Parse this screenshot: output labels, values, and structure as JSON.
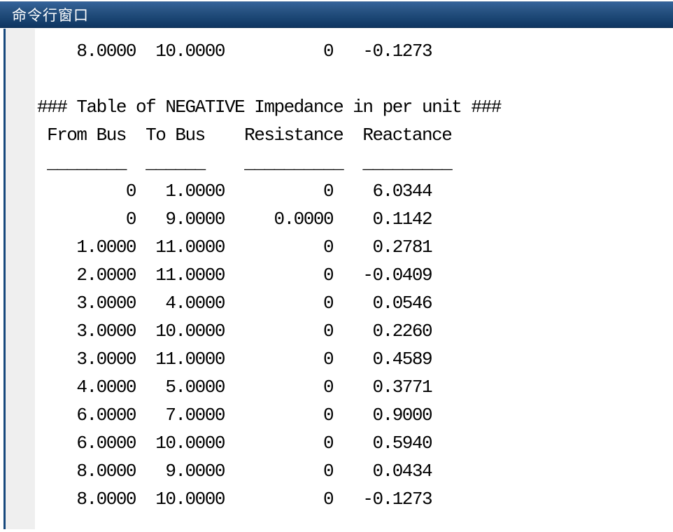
{
  "window": {
    "title": "命令行窗口"
  },
  "console": {
    "scrollback_partial_row": [
      "8.0000",
      "10.0000",
      "0",
      "-0.1273"
    ],
    "table": {
      "title": "### Table of NEGATIVE Impedance in per unit ###",
      "columns": [
        "From Bus",
        "To Bus",
        "Resistance",
        "Reactance"
      ],
      "rows": [
        [
          "0",
          "1.0000",
          "0",
          "6.0344"
        ],
        [
          "0",
          "9.0000",
          "0.0000",
          "0.1142"
        ],
        [
          "1.0000",
          "11.0000",
          "0",
          "0.2781"
        ],
        [
          "2.0000",
          "11.0000",
          "0",
          "-0.0409"
        ],
        [
          "3.0000",
          "4.0000",
          "0",
          "0.0546"
        ],
        [
          "3.0000",
          "10.0000",
          "0",
          "0.2260"
        ],
        [
          "3.0000",
          "11.0000",
          "0",
          "0.4589"
        ],
        [
          "4.0000",
          "5.0000",
          "0",
          "0.3771"
        ],
        [
          "6.0000",
          "7.0000",
          "0",
          "0.9000"
        ],
        [
          "6.0000",
          "10.0000",
          "0",
          "0.5940"
        ],
        [
          "8.0000",
          "9.0000",
          "0",
          "0.0434"
        ],
        [
          "8.0000",
          "10.0000",
          "0",
          "-0.1273"
        ]
      ]
    }
  },
  "colors": {
    "titlebar_top": "#34629a",
    "titlebar_bottom": "#0f3560",
    "title_text": "#ffffff",
    "accent_border": "#17497d",
    "gutter": "#efefef",
    "console_text": "#000000",
    "background": "#ffffff"
  }
}
